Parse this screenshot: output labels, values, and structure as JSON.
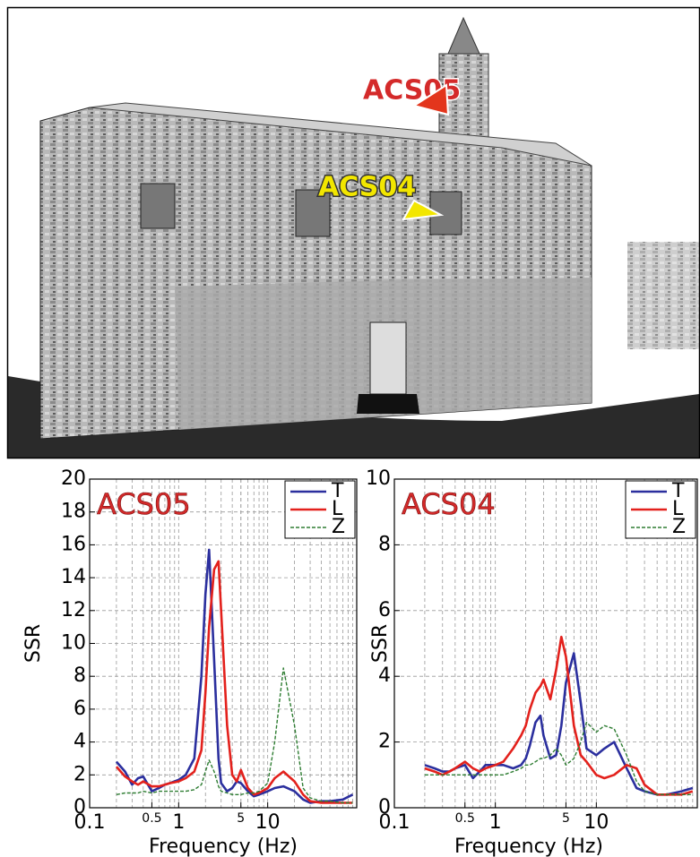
{
  "photo": {
    "labels": [
      "ACS05",
      "ACS04"
    ]
  },
  "chart_data": [
    {
      "type": "line",
      "title": "ACS05",
      "title_color": "#d42a2a",
      "xlabel": "Frequency (Hz)",
      "ylabel": "SSR",
      "xscale": "log",
      "xlim": [
        0.1,
        100
      ],
      "ylim": [
        0,
        20
      ],
      "xticks": [
        0.1,
        0.5,
        1,
        5,
        10
      ],
      "yticks": [
        0,
        2,
        4,
        6,
        8,
        10,
        12,
        14,
        16,
        18,
        20
      ],
      "x_minor_grid": [
        0.2,
        0.3,
        0.4,
        0.5,
        0.6,
        0.7,
        0.8,
        0.9,
        2,
        3,
        4,
        5,
        6,
        7,
        8,
        9,
        20,
        30,
        40,
        50,
        60,
        70,
        80,
        90
      ],
      "grid": true,
      "legend": "upper right",
      "x": [
        0.2,
        0.25,
        0.3,
        0.35,
        0.4,
        0.5,
        0.6,
        0.7,
        0.8,
        1,
        1.2,
        1.5,
        1.8,
        2,
        2.2,
        2.5,
        2.8,
        3,
        3.5,
        4,
        4.5,
        5,
        6,
        7,
        8,
        10,
        12,
        15,
        20,
        25,
        30,
        40,
        50,
        70,
        90
      ],
      "series": [
        {
          "name": "T",
          "color": "#2b2f9e",
          "linestyle": "solid",
          "values": [
            2.8,
            2.2,
            1.4,
            1.8,
            1.9,
            1.0,
            1.2,
            1.4,
            1.5,
            1.7,
            2.0,
            3,
            8,
            13,
            15.7,
            9,
            3,
            1.5,
            1.0,
            1.2,
            1.6,
            1.5,
            1.0,
            0.7,
            0.8,
            1.0,
            1.2,
            1.3,
            1.0,
            0.5,
            0.3,
            0.4,
            0.4,
            0.5,
            0.8
          ]
        },
        {
          "name": "L",
          "color": "#e3211c",
          "linestyle": "solid",
          "values": [
            2.5,
            1.9,
            1.6,
            1.4,
            1.6,
            1.3,
            1.3,
            1.4,
            1.5,
            1.6,
            1.8,
            2.2,
            3.5,
            7,
            11,
            14.5,
            15,
            12,
            5,
            2.0,
            1.6,
            2.3,
            1.2,
            0.8,
            0.9,
            1.2,
            1.8,
            2.2,
            1.6,
            0.8,
            0.4,
            0.3,
            0.3,
            0.3,
            0.3
          ]
        },
        {
          "name": "Z",
          "color": "#2e7d32",
          "linestyle": "dashed",
          "values": [
            0.8,
            0.9,
            0.9,
            0.9,
            1.0,
            0.9,
            1.0,
            1.0,
            1.0,
            1.0,
            1.0,
            1.1,
            1.4,
            2.2,
            2.9,
            2.2,
            1.3,
            1.0,
            0.9,
            0.8,
            0.8,
            0.8,
            0.9,
            0.9,
            1.0,
            1.5,
            4,
            8.5,
            5,
            1.2,
            0.6,
            0.4,
            0.4,
            0.3,
            0.3
          ]
        }
      ]
    },
    {
      "type": "line",
      "title": "ACS04",
      "title_color": "#d42a2a",
      "xlabel": "Frequency (Hz)",
      "ylabel": "SSR",
      "xscale": "log",
      "xlim": [
        0.1,
        100
      ],
      "ylim": [
        0,
        10
      ],
      "xticks": [
        0.1,
        0.5,
        1,
        5,
        10
      ],
      "yticks": [
        0,
        2,
        4,
        6,
        8,
        10
      ],
      "x_minor_grid": [
        0.2,
        0.3,
        0.4,
        0.5,
        0.6,
        0.7,
        0.8,
        0.9,
        2,
        3,
        4,
        5,
        6,
        7,
        8,
        9,
        20,
        30,
        40,
        50,
        60,
        70,
        80,
        90
      ],
      "grid": true,
      "legend": "upper right",
      "x": [
        0.2,
        0.25,
        0.3,
        0.35,
        0.4,
        0.5,
        0.6,
        0.7,
        0.8,
        1,
        1.2,
        1.5,
        1.8,
        2,
        2.2,
        2.5,
        2.8,
        3,
        3.5,
        4,
        4.5,
        5,
        6,
        7,
        8,
        10,
        12,
        15,
        20,
        25,
        30,
        40,
        50,
        70,
        90
      ],
      "series": [
        {
          "name": "T",
          "color": "#2b2f9e",
          "linestyle": "solid",
          "values": [
            1.3,
            1.2,
            1.1,
            1.1,
            1.2,
            1.3,
            0.9,
            1.1,
            1.3,
            1.3,
            1.3,
            1.2,
            1.3,
            1.5,
            1.9,
            2.6,
            2.8,
            2.2,
            1.5,
            1.6,
            2.5,
            3.8,
            4.7,
            3.2,
            1.8,
            1.6,
            1.8,
            2.0,
            1.2,
            0.6,
            0.5,
            0.4,
            0.4,
            0.5,
            0.6
          ]
        },
        {
          "name": "L",
          "color": "#e3211c",
          "linestyle": "solid",
          "values": [
            1.2,
            1.1,
            1.0,
            1.1,
            1.2,
            1.4,
            1.2,
            1.1,
            1.2,
            1.3,
            1.4,
            1.8,
            2.2,
            2.5,
            3.0,
            3.5,
            3.7,
            3.9,
            3.3,
            4.2,
            5.2,
            4.6,
            2.5,
            1.6,
            1.4,
            1.0,
            0.9,
            1.0,
            1.3,
            1.2,
            0.7,
            0.4,
            0.4,
            0.4,
            0.5
          ]
        },
        {
          "name": "Z",
          "color": "#2e7d32",
          "linestyle": "dashed",
          "values": [
            1.0,
            1.0,
            1.0,
            1.0,
            1.0,
            1.0,
            1.0,
            1.0,
            1.0,
            1.0,
            1.0,
            1.1,
            1.2,
            1.3,
            1.3,
            1.4,
            1.5,
            1.5,
            1.6,
            1.8,
            1.6,
            1.3,
            1.5,
            2.0,
            2.6,
            2.3,
            2.5,
            2.4,
            1.6,
            0.8,
            0.5,
            0.4,
            0.4,
            0.4,
            0.4
          ]
        }
      ]
    }
  ]
}
